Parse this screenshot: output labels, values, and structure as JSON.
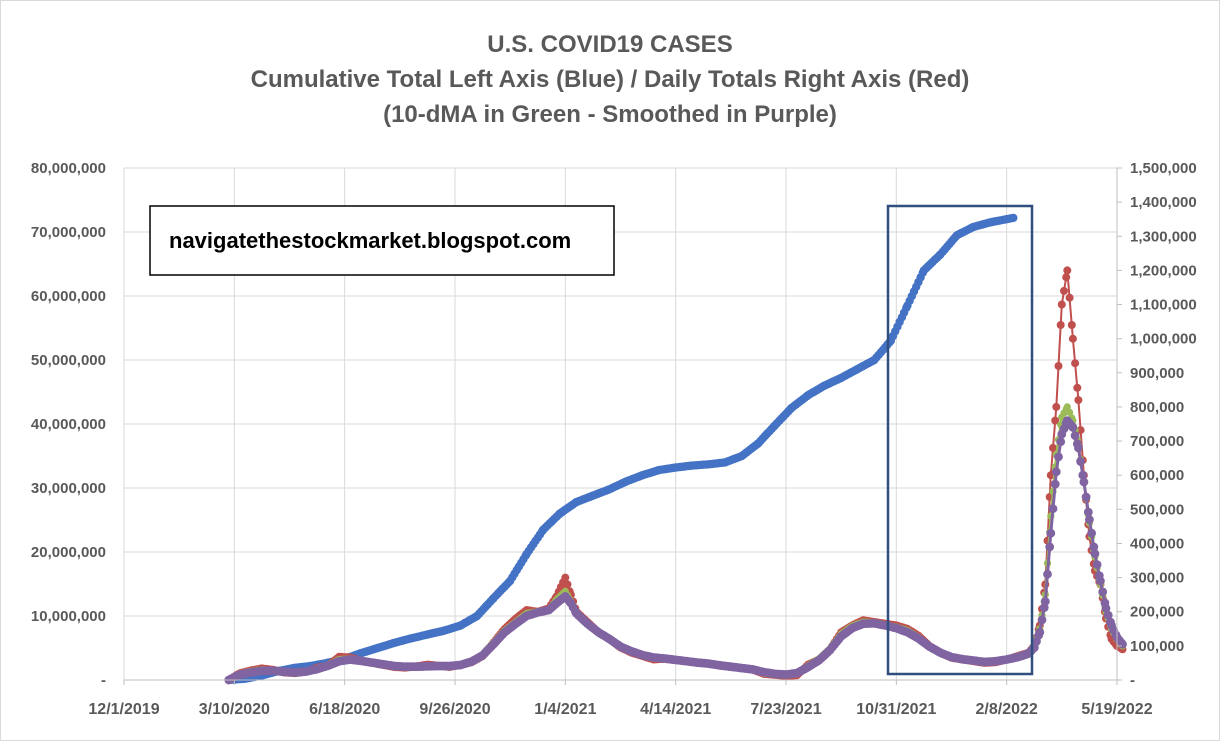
{
  "chart_data": {
    "type": "line",
    "title": "U.S. COVID19 CASES",
    "subtitle": "Cumulative Total Left Axis (Blue) / Daily Totals Right Axis (Red)",
    "subtitle2": "(10-dMA in Green - Smoothed in Purple)",
    "annotation": "navigatethestockmarket.blogspot.com",
    "xlim_days": [
      0,
      900
    ],
    "x_ticks": [
      {
        "day": 0,
        "label": "12/1/2019"
      },
      {
        "day": 100,
        "label": "3/10/2020"
      },
      {
        "day": 200,
        "label": "6/18/2020"
      },
      {
        "day": 300,
        "label": "9/26/2020"
      },
      {
        "day": 400,
        "label": "1/4/2021"
      },
      {
        "day": 500,
        "label": "4/14/2021"
      },
      {
        "day": 600,
        "label": "7/23/2021"
      },
      {
        "day": 700,
        "label": "10/31/2021"
      },
      {
        "day": 800,
        "label": "2/8/2022"
      },
      {
        "day": 900,
        "label": "5/19/2022"
      }
    ],
    "y_left": {
      "lim": [
        0,
        80000000
      ],
      "ticks": [
        {
          "v": 0,
          "label": "-"
        },
        {
          "v": 10000000,
          "label": "10,000,000"
        },
        {
          "v": 20000000,
          "label": "20,000,000"
        },
        {
          "v": 30000000,
          "label": "30,000,000"
        },
        {
          "v": 40000000,
          "label": "40,000,000"
        },
        {
          "v": 50000000,
          "label": "50,000,000"
        },
        {
          "v": 60000000,
          "label": "60,000,000"
        },
        {
          "v": 70000000,
          "label": "70,000,000"
        },
        {
          "v": 80000000,
          "label": "80,000,000"
        }
      ]
    },
    "y_right": {
      "lim": [
        0,
        1500000
      ],
      "ticks": [
        {
          "v": 0,
          "label": "-"
        },
        {
          "v": 100000,
          "label": "100,000"
        },
        {
          "v": 200000,
          "label": "200,000"
        },
        {
          "v": 300000,
          "label": "300,000"
        },
        {
          "v": 400000,
          "label": "400,000"
        },
        {
          "v": 500000,
          "label": "500,000"
        },
        {
          "v": 600000,
          "label": "600,000"
        },
        {
          "v": 700000,
          "label": "700,000"
        },
        {
          "v": 800000,
          "label": "800,000"
        },
        {
          "v": 900000,
          "label": "900,000"
        },
        {
          "v": 1000000,
          "label": "1,000,000"
        },
        {
          "v": 1100000,
          "label": "1,100,000"
        },
        {
          "v": 1200000,
          "label": "1,200,000"
        },
        {
          "v": 1300000,
          "label": "1,300,000"
        },
        {
          "v": 1400000,
          "label": "1,400,000"
        },
        {
          "v": 1500000,
          "label": "1,500,000"
        }
      ]
    },
    "series": [
      {
        "axis": "left",
        "color": "#4472C4",
        "role": "cumulative",
        "x": [
          95,
          110,
          125,
          140,
          155,
          170,
          185,
          200,
          215,
          230,
          245,
          260,
          275,
          290,
          305,
          320,
          335,
          350,
          365,
          380,
          395,
          410,
          425,
          440,
          455,
          470,
          485,
          500,
          515,
          530,
          545,
          560,
          575,
          590,
          605,
          620,
          635,
          650,
          665,
          680,
          695,
          710,
          725,
          740,
          755,
          770,
          785,
          800,
          806
        ],
        "y": [
          0,
          200000,
          700000,
          1400000,
          1900000,
          2200000,
          2700000,
          3300000,
          4200000,
          5000000,
          5800000,
          6500000,
          7100000,
          7700000,
          8500000,
          10000000,
          12800000,
          15500000,
          19700000,
          23500000,
          26000000,
          27800000,
          28800000,
          29800000,
          31000000,
          32000000,
          32800000,
          33200000,
          33500000,
          33700000,
          34000000,
          35000000,
          37000000,
          39800000,
          42500000,
          44500000,
          46000000,
          47200000,
          48600000,
          50000000,
          53000000,
          58500000,
          64000000,
          66500000,
          69500000,
          70800000,
          71500000,
          72000000,
          72200000
        ]
      },
      {
        "axis": "right",
        "color": "#C0504D",
        "role": "daily",
        "x": [
          95,
          105,
          115,
          125,
          135,
          145,
          155,
          165,
          175,
          185,
          195,
          205,
          215,
          225,
          235,
          245,
          255,
          265,
          275,
          285,
          295,
          305,
          315,
          325,
          335,
          345,
          355,
          365,
          375,
          385,
          392,
          400,
          405,
          410,
          420,
          430,
          440,
          450,
          460,
          470,
          480,
          490,
          500,
          510,
          520,
          530,
          540,
          550,
          560,
          570,
          580,
          590,
          600,
          610,
          620,
          630,
          640,
          650,
          660,
          670,
          680,
          690,
          700,
          710,
          720,
          730,
          740,
          750,
          760,
          770,
          780,
          790,
          800,
          810,
          815,
          820,
          825,
          830,
          835,
          840,
          845,
          850,
          855,
          860,
          865,
          870,
          875,
          880,
          885,
          890,
          895,
          900,
          905
        ],
        "y": [
          0,
          20000,
          28000,
          34000,
          30000,
          22000,
          20000,
          24000,
          36000,
          42000,
          68000,
          66000,
          56000,
          50000,
          44000,
          38000,
          36000,
          40000,
          45000,
          42000,
          38000,
          44000,
          52000,
          70000,
          110000,
          150000,
          180000,
          205000,
          200000,
          210000,
          245000,
          300000,
          250000,
          200000,
          170000,
          140000,
          120000,
          95000,
          80000,
          70000,
          60000,
          62000,
          58000,
          55000,
          50000,
          48000,
          42000,
          38000,
          35000,
          30000,
          18000,
          15000,
          12000,
          14000,
          45000,
          60000,
          90000,
          140000,
          160000,
          175000,
          170000,
          165000,
          160000,
          150000,
          130000,
          100000,
          80000,
          65000,
          60000,
          55000,
          50000,
          52000,
          60000,
          70000,
          75000,
          80000,
          100000,
          160000,
          280000,
          600000,
          800000,
          1100000,
          1200000,
          1000000,
          820000,
          600000,
          420000,
          320000,
          280000,
          180000,
          120000,
          100000,
          90000
        ]
      },
      {
        "axis": "right",
        "color": "#9BBB59",
        "role": "10-dMA",
        "x": [
          95,
          105,
          115,
          125,
          135,
          145,
          155,
          165,
          175,
          185,
          195,
          205,
          215,
          225,
          235,
          245,
          255,
          265,
          275,
          285,
          295,
          305,
          315,
          325,
          335,
          345,
          355,
          365,
          375,
          385,
          392,
          400,
          405,
          410,
          420,
          430,
          440,
          450,
          460,
          470,
          480,
          490,
          500,
          510,
          520,
          530,
          540,
          550,
          560,
          570,
          580,
          590,
          600,
          610,
          620,
          630,
          640,
          650,
          660,
          670,
          680,
          690,
          700,
          710,
          720,
          730,
          740,
          750,
          760,
          770,
          780,
          790,
          800,
          810,
          815,
          820,
          825,
          830,
          835,
          840,
          845,
          850,
          855,
          860,
          865,
          870,
          875,
          880,
          885,
          890,
          895,
          900,
          905
        ],
        "y": [
          0,
          18000,
          25000,
          30000,
          28000,
          23000,
          21000,
          25000,
          34000,
          44000,
          60000,
          62000,
          56000,
          50000,
          45000,
          40000,
          38000,
          39000,
          42000,
          41000,
          40000,
          44000,
          55000,
          75000,
          110000,
          145000,
          170000,
          195000,
          200000,
          205000,
          235000,
          260000,
          230000,
          195000,
          165000,
          138000,
          118000,
          96000,
          82000,
          72000,
          64000,
          62000,
          58000,
          54000,
          50000,
          47000,
          42000,
          38000,
          34000,
          30000,
          20000,
          16000,
          14000,
          18000,
          42000,
          62000,
          92000,
          135000,
          158000,
          170000,
          168000,
          162000,
          155000,
          145000,
          125000,
          98000,
          80000,
          66000,
          60000,
          56000,
          52000,
          54000,
          60000,
          68000,
          74000,
          80000,
          100000,
          150000,
          250000,
          480000,
          660000,
          770000,
          800000,
          760000,
          690000,
          580000,
          460000,
          360000,
          280000,
          200000,
          150000,
          120000,
          100000
        ]
      },
      {
        "axis": "right",
        "color": "#8064A2",
        "role": "smoothed",
        "x": [
          95,
          105,
          115,
          125,
          135,
          145,
          155,
          165,
          175,
          185,
          195,
          205,
          215,
          225,
          235,
          245,
          255,
          265,
          275,
          285,
          295,
          305,
          315,
          325,
          335,
          345,
          355,
          365,
          375,
          385,
          392,
          400,
          405,
          410,
          420,
          430,
          440,
          450,
          460,
          470,
          480,
          490,
          500,
          510,
          520,
          530,
          540,
          550,
          560,
          570,
          580,
          590,
          600,
          610,
          620,
          630,
          640,
          650,
          660,
          670,
          680,
          690,
          700,
          710,
          720,
          730,
          740,
          750,
          760,
          770,
          780,
          790,
          800,
          810,
          815,
          820,
          825,
          830,
          835,
          840,
          845,
          850,
          855,
          860,
          865,
          870,
          875,
          880,
          885,
          890,
          895,
          900,
          905
        ],
        "y": [
          0,
          16000,
          22000,
          27000,
          27000,
          24000,
          22000,
          25000,
          32000,
          42000,
          55000,
          60000,
          56000,
          51000,
          46000,
          41000,
          39000,
          39000,
          40000,
          41000,
          41000,
          44000,
          54000,
          72000,
          105000,
          140000,
          165000,
          188000,
          198000,
          205000,
          225000,
          245000,
          225000,
          195000,
          165000,
          140000,
          120000,
          98000,
          84000,
          73000,
          66000,
          63000,
          59000,
          55000,
          51000,
          48000,
          43000,
          39000,
          35000,
          31000,
          23000,
          18000,
          16000,
          20000,
          38000,
          58000,
          88000,
          128000,
          152000,
          165000,
          166000,
          160000,
          152000,
          140000,
          122000,
          98000,
          80000,
          67000,
          61000,
          57000,
          53000,
          55000,
          60000,
          67000,
          72000,
          78000,
          95000,
          140000,
          230000,
          430000,
          610000,
          720000,
          760000,
          740000,
          680000,
          580000,
          470000,
          370000,
          290000,
          210000,
          160000,
          125000,
          105000
        ]
      }
    ]
  }
}
